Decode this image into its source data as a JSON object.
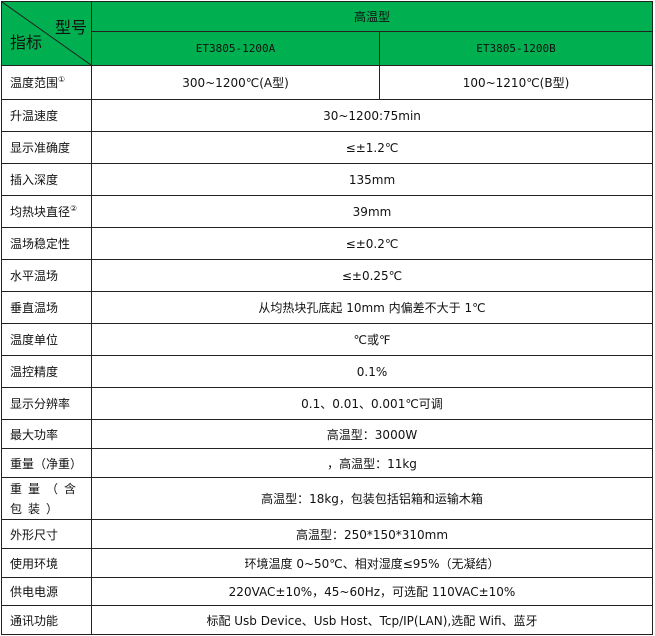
{
  "header": {
    "corner_top": "型号",
    "corner_bottom": "指标",
    "group": "高温型",
    "models": [
      "ET3805-1200A",
      "ET3805-1200B"
    ]
  },
  "colors": {
    "header_bg": "#00b050"
  },
  "range_row": {
    "label": "温度范围",
    "sup": "①",
    "a": "300~1200℃(A型)",
    "b": "100~1210℃(B型)"
  },
  "rows": [
    {
      "label": "升温速度",
      "value": "30~1200:75min"
    },
    {
      "label": "显示准确度",
      "value": "≤±1.2℃"
    },
    {
      "label": "插入深度",
      "value": "135mm"
    },
    {
      "label": "均热块直径",
      "sup": "②",
      "value": "39mm"
    },
    {
      "label": "温场稳定性",
      "value": "≤±0.2℃"
    },
    {
      "label": "水平温场",
      "value": "≤±0.25℃"
    },
    {
      "label": "垂直温场",
      "value": "从均热块孔底起 10mm 内偏差不大于 1℃"
    },
    {
      "label": "温度单位",
      "value": "℃或℉"
    },
    {
      "label": "温控精度",
      "value": "0.1%"
    },
    {
      "label": "显示分辨率",
      "value": "0.1、0.01、0.001℃可调"
    },
    {
      "label": "最大功率",
      "value": "高温型：3000W"
    },
    {
      "label": "重量（净重）",
      "value": "，高温型：11kg"
    },
    {
      "label": "重量（含包装）",
      "value": "高温型：18kg，包装包括铝箱和运输木箱"
    },
    {
      "label": "外形尺寸",
      "value": "高温型：250*150*310mm"
    },
    {
      "label": "使用环境",
      "value": "环境温度 0~50℃、相对湿度≤95%（无凝结）"
    },
    {
      "label": "供电电源",
      "value": "220VAC±10%，45~60Hz，可选配 110VAC±10%"
    },
    {
      "label": "通讯功能",
      "value": "标配 Usb Device、Usb Host、Tcp/IP(LAN),选配 Wifi、蓝牙"
    }
  ]
}
